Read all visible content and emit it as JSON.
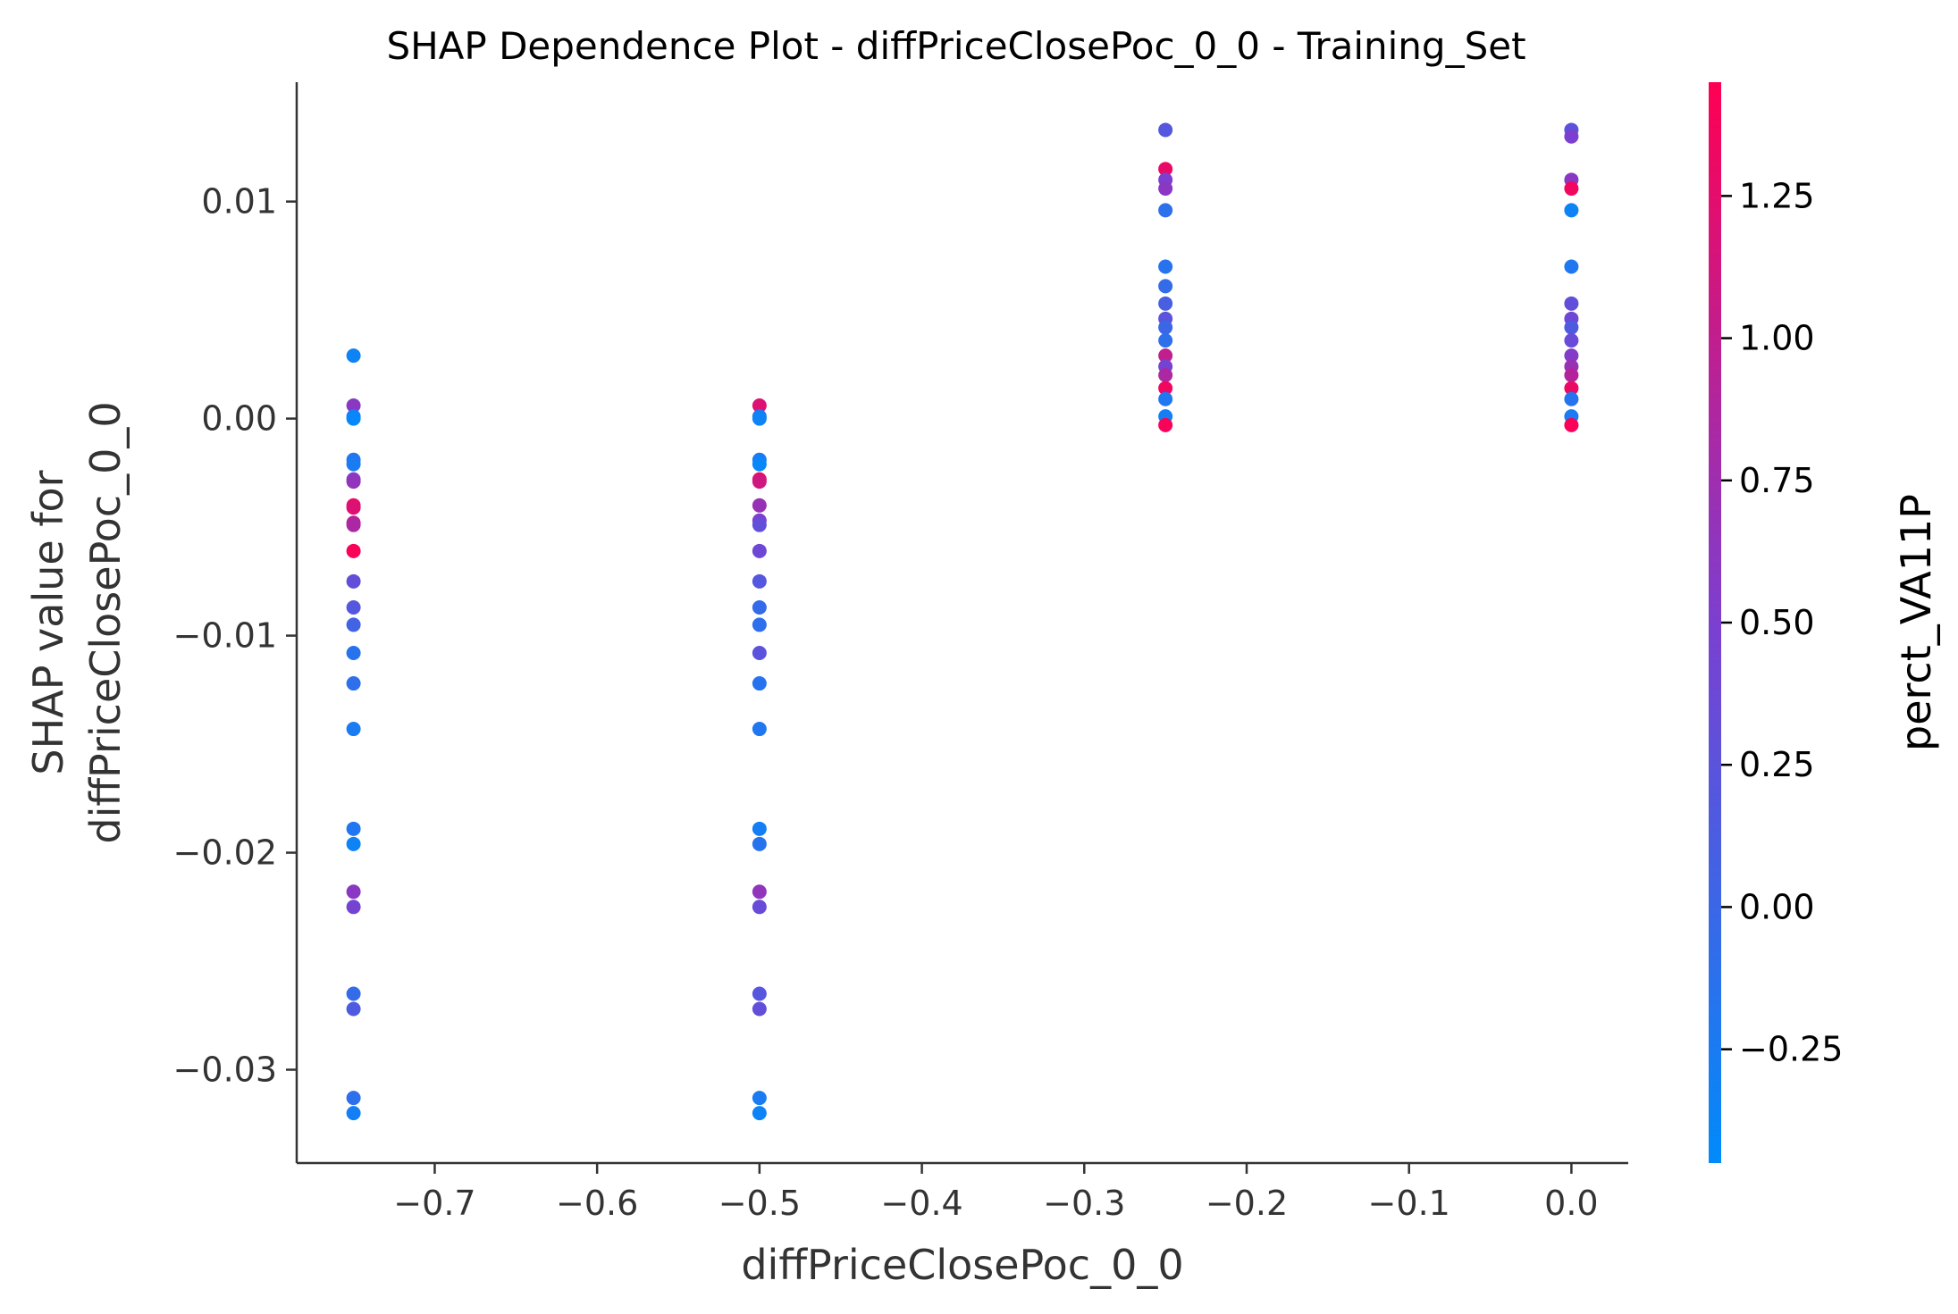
{
  "chart_data": {
    "type": "scatter",
    "title": "SHAP Dependence Plot - diffPriceClosePoc_0_0 - Training_Set",
    "xlabel": "diffPriceClosePoc_0_0",
    "ylabel_line1": "SHAP value for",
    "ylabel_line2": "diffPriceClosePoc_0_0",
    "xlim": [
      -0.785,
      0.035
    ],
    "ylim": [
      -0.0343,
      0.0155
    ],
    "xticks": [
      -0.7,
      -0.6,
      -0.5,
      -0.4,
      -0.3,
      -0.2,
      -0.1,
      0.0
    ],
    "xtick_labels": [
      "−0.7",
      "−0.6",
      "−0.5",
      "−0.4",
      "−0.3",
      "−0.2",
      "−0.1",
      "0.0"
    ],
    "yticks": [
      0.01,
      0.0,
      -0.01,
      -0.02,
      -0.03
    ],
    "ytick_labels": [
      "0.01",
      "0.00",
      "−0.01",
      "−0.02",
      "−0.03"
    ],
    "colorbar": {
      "label": "perct_VA11P",
      "range": [
        -0.45,
        1.45
      ],
      "ticks": [
        1.25,
        1.0,
        0.75,
        0.5,
        0.25,
        0.0,
        -0.25
      ],
      "tick_labels": [
        "1.25",
        "1.00",
        "0.75",
        "0.50",
        "0.25",
        "0.00",
        "−0.25"
      ],
      "low_color": "#008bfb",
      "mid_color": "#7c3fd0",
      "high_color": "#ff0052"
    },
    "points": [
      {
        "x": -0.75,
        "y": 0.0029,
        "c": -0.35
      },
      {
        "x": -0.75,
        "y": 0.0006,
        "c": 0.6
      },
      {
        "x": -0.75,
        "y": 0.0001,
        "c": -0.3
      },
      {
        "x": -0.75,
        "y": 0.0,
        "c": -0.4
      },
      {
        "x": -0.75,
        "y": -0.0019,
        "c": -0.2
      },
      {
        "x": -0.75,
        "y": -0.0021,
        "c": -0.25
      },
      {
        "x": -0.75,
        "y": -0.0028,
        "c": 0.55
      },
      {
        "x": -0.75,
        "y": -0.0029,
        "c": 0.65
      },
      {
        "x": -0.75,
        "y": -0.004,
        "c": 1.3
      },
      {
        "x": -0.75,
        "y": -0.0041,
        "c": 1.2
      },
      {
        "x": -0.75,
        "y": -0.0048,
        "c": 0.95
      },
      {
        "x": -0.75,
        "y": -0.0049,
        "c": 0.85
      },
      {
        "x": -0.75,
        "y": -0.0061,
        "c": 1.4
      },
      {
        "x": -0.75,
        "y": -0.0075,
        "c": 0.3
      },
      {
        "x": -0.75,
        "y": -0.0087,
        "c": 0.2
      },
      {
        "x": -0.75,
        "y": -0.0095,
        "c": 0.05
      },
      {
        "x": -0.75,
        "y": -0.0108,
        "c": -0.15
      },
      {
        "x": -0.75,
        "y": -0.0122,
        "c": -0.1
      },
      {
        "x": -0.75,
        "y": -0.0143,
        "c": -0.25
      },
      {
        "x": -0.75,
        "y": -0.0189,
        "c": -0.2
      },
      {
        "x": -0.75,
        "y": -0.0196,
        "c": -0.35
      },
      {
        "x": -0.75,
        "y": -0.0218,
        "c": 0.6
      },
      {
        "x": -0.75,
        "y": -0.0225,
        "c": 0.45
      },
      {
        "x": -0.75,
        "y": -0.0265,
        "c": -0.05
      },
      {
        "x": -0.75,
        "y": -0.0272,
        "c": 0.15
      },
      {
        "x": -0.75,
        "y": -0.0313,
        "c": -0.1
      },
      {
        "x": -0.75,
        "y": -0.032,
        "c": -0.3
      },
      {
        "x": -0.5,
        "y": 0.0006,
        "c": 1.2
      },
      {
        "x": -0.5,
        "y": 0.0001,
        "c": -0.2
      },
      {
        "x": -0.5,
        "y": 0.0,
        "c": -0.35
      },
      {
        "x": -0.5,
        "y": -0.0019,
        "c": -0.25
      },
      {
        "x": -0.5,
        "y": -0.0021,
        "c": -0.4
      },
      {
        "x": -0.5,
        "y": -0.0028,
        "c": 1.3
      },
      {
        "x": -0.5,
        "y": -0.0029,
        "c": 1.1
      },
      {
        "x": -0.5,
        "y": -0.004,
        "c": 0.7
      },
      {
        "x": -0.5,
        "y": -0.0047,
        "c": 0.5
      },
      {
        "x": -0.5,
        "y": -0.0049,
        "c": 0.3
      },
      {
        "x": -0.5,
        "y": -0.0061,
        "c": 0.4
      },
      {
        "x": -0.5,
        "y": -0.0075,
        "c": 0.2
      },
      {
        "x": -0.5,
        "y": -0.0087,
        "c": -0.05
      },
      {
        "x": -0.5,
        "y": -0.0095,
        "c": -0.1
      },
      {
        "x": -0.5,
        "y": -0.0108,
        "c": 0.25
      },
      {
        "x": -0.5,
        "y": -0.0122,
        "c": -0.15
      },
      {
        "x": -0.5,
        "y": -0.0143,
        "c": -0.2
      },
      {
        "x": -0.5,
        "y": -0.0189,
        "c": -0.3
      },
      {
        "x": -0.5,
        "y": -0.0196,
        "c": -0.15
      },
      {
        "x": -0.5,
        "y": -0.0218,
        "c": 0.65
      },
      {
        "x": -0.5,
        "y": -0.0225,
        "c": 0.35
      },
      {
        "x": -0.5,
        "y": -0.0265,
        "c": 0.2
      },
      {
        "x": -0.5,
        "y": -0.0272,
        "c": 0.3
      },
      {
        "x": -0.5,
        "y": -0.0313,
        "c": -0.25
      },
      {
        "x": -0.5,
        "y": -0.032,
        "c": -0.35
      },
      {
        "x": -0.25,
        "y": 0.0133,
        "c": 0.2
      },
      {
        "x": -0.25,
        "y": 0.0115,
        "c": 1.3
      },
      {
        "x": -0.25,
        "y": 0.011,
        "c": 0.5
      },
      {
        "x": -0.25,
        "y": 0.0106,
        "c": 0.6
      },
      {
        "x": -0.25,
        "y": 0.0096,
        "c": -0.1
      },
      {
        "x": -0.25,
        "y": 0.007,
        "c": -0.15
      },
      {
        "x": -0.25,
        "y": 0.0061,
        "c": -0.05
      },
      {
        "x": -0.25,
        "y": 0.0053,
        "c": 0.1
      },
      {
        "x": -0.25,
        "y": 0.0046,
        "c": 0.25
      },
      {
        "x": -0.25,
        "y": 0.0042,
        "c": 0.0
      },
      {
        "x": -0.25,
        "y": 0.0036,
        "c": -0.1
      },
      {
        "x": -0.25,
        "y": 0.0029,
        "c": 1.0
      },
      {
        "x": -0.25,
        "y": 0.0024,
        "c": 0.45
      },
      {
        "x": -0.25,
        "y": 0.002,
        "c": 0.85
      },
      {
        "x": -0.25,
        "y": 0.0014,
        "c": 1.35
      },
      {
        "x": -0.25,
        "y": 0.0009,
        "c": -0.2
      },
      {
        "x": -0.25,
        "y": 0.0001,
        "c": -0.3
      },
      {
        "x": -0.25,
        "y": -0.0003,
        "c": 1.4
      },
      {
        "x": 0.0,
        "y": 0.0133,
        "c": 0.25
      },
      {
        "x": 0.0,
        "y": 0.013,
        "c": 0.5
      },
      {
        "x": 0.0,
        "y": 0.011,
        "c": 0.6
      },
      {
        "x": 0.0,
        "y": 0.0106,
        "c": 1.35
      },
      {
        "x": 0.0,
        "y": 0.0096,
        "c": -0.35
      },
      {
        "x": 0.0,
        "y": 0.007,
        "c": -0.2
      },
      {
        "x": 0.0,
        "y": 0.0053,
        "c": 0.3
      },
      {
        "x": 0.0,
        "y": 0.0046,
        "c": 0.4
      },
      {
        "x": 0.0,
        "y": 0.0042,
        "c": 0.15
      },
      {
        "x": 0.0,
        "y": 0.0036,
        "c": 0.35
      },
      {
        "x": 0.0,
        "y": 0.0029,
        "c": 0.55
      },
      {
        "x": 0.0,
        "y": 0.0024,
        "c": 0.7
      },
      {
        "x": 0.0,
        "y": 0.002,
        "c": 0.9
      },
      {
        "x": 0.0,
        "y": 0.0014,
        "c": 1.3
      },
      {
        "x": 0.0,
        "y": 0.0009,
        "c": -0.15
      },
      {
        "x": 0.0,
        "y": 0.0001,
        "c": -0.25
      },
      {
        "x": 0.0,
        "y": -0.0003,
        "c": 1.4
      }
    ]
  }
}
